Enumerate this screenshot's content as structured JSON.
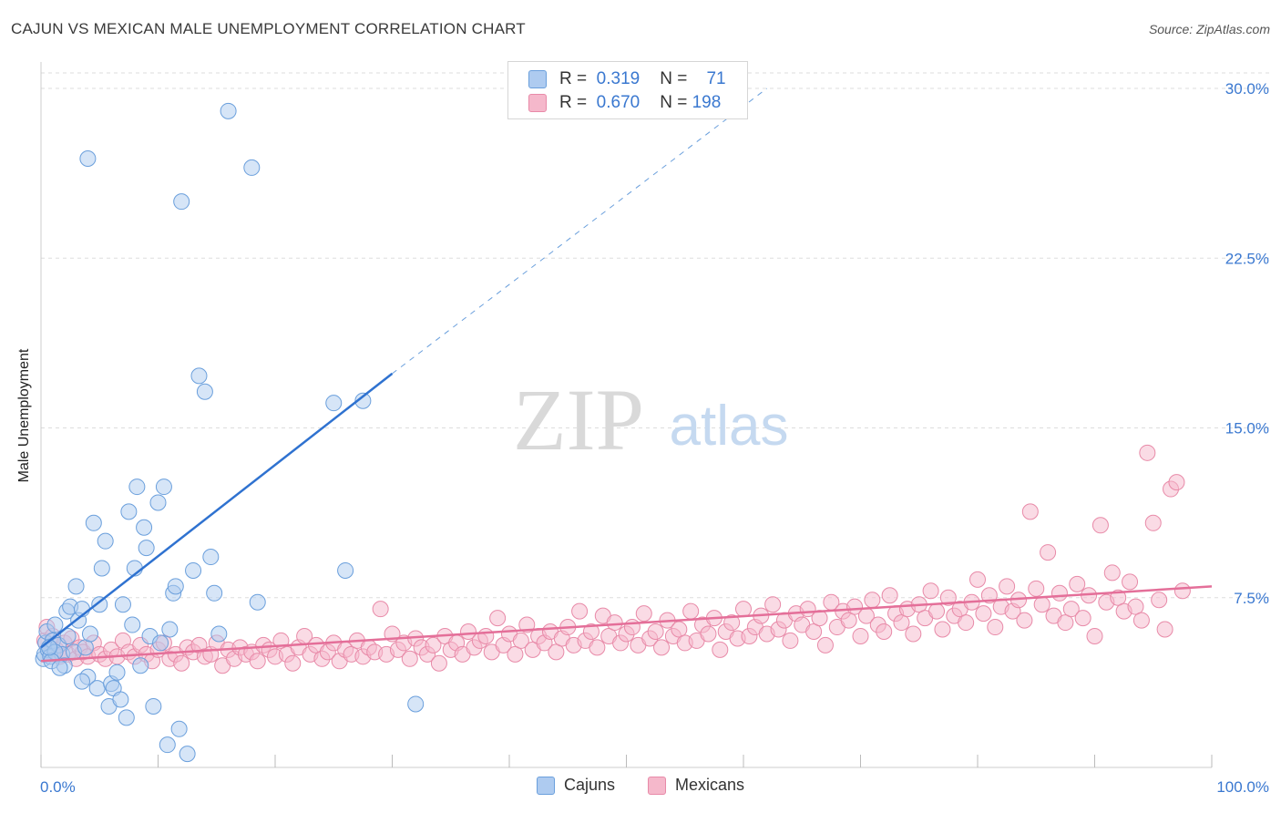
{
  "title": "CAJUN VS MEXICAN MALE UNEMPLOYMENT CORRELATION CHART",
  "source": "Source: ZipAtlas.com",
  "watermark": {
    "zip": "ZIP",
    "atlas": "atlas"
  },
  "colors": {
    "cajun_fill": "#aecbf0",
    "cajun_stroke": "#6a9fdc",
    "cajun_line": "#2f72d0",
    "mexican_fill": "#f5b8cb",
    "mexican_stroke": "#e88aa8",
    "mexican_line": "#e46f99",
    "axis_text": "#3a78d0",
    "grid": "#dddddd"
  },
  "legend": {
    "cajun": {
      "r_label": "R =",
      "r_value": "0.319",
      "n_label": "N =",
      "n_value": "71"
    },
    "mexican": {
      "r_label": "R =",
      "r_value": "0.670",
      "n_label": "N =",
      "n_value": "198"
    }
  },
  "bottom_legend": {
    "cajun": "Cajuns",
    "mexican": "Mexicans"
  },
  "chart_data": {
    "type": "scatter",
    "ylabel": "Male Unemployment",
    "xlim": [
      0,
      100
    ],
    "ylim": [
      0,
      30
    ],
    "x_tick_labels": [
      "0.0%",
      "100.0%"
    ],
    "y_ticks": [
      7.5,
      15.0,
      22.5,
      30.0
    ],
    "y_tick_labels": [
      "7.5%",
      "15.0%",
      "22.5%",
      "30.0%"
    ],
    "grid": true,
    "series": [
      {
        "name": "Cajuns",
        "points": [
          [
            0.2,
            4.8
          ],
          [
            0.3,
            5.0
          ],
          [
            0.4,
            5.5
          ],
          [
            0.5,
            6.0
          ],
          [
            0.6,
            5.2
          ],
          [
            0.8,
            4.9
          ],
          [
            1.0,
            5.6
          ],
          [
            1.2,
            6.3
          ],
          [
            1.5,
            5.4
          ],
          [
            1.8,
            5.0
          ],
          [
            2.0,
            4.5
          ],
          [
            2.2,
            6.9
          ],
          [
            2.5,
            7.1
          ],
          [
            2.8,
            5.1
          ],
          [
            3.0,
            8.0
          ],
          [
            3.2,
            6.5
          ],
          [
            3.5,
            7.0
          ],
          [
            3.8,
            5.3
          ],
          [
            4.0,
            4.0
          ],
          [
            4.2,
            5.9
          ],
          [
            4.5,
            10.8
          ],
          [
            4.8,
            3.5
          ],
          [
            5.0,
            7.2
          ],
          [
            5.2,
            8.8
          ],
          [
            5.5,
            10.0
          ],
          [
            5.8,
            2.7
          ],
          [
            6.0,
            3.7
          ],
          [
            6.2,
            3.5
          ],
          [
            6.5,
            4.2
          ],
          [
            6.8,
            3.0
          ],
          [
            7.0,
            7.2
          ],
          [
            7.3,
            2.2
          ],
          [
            7.5,
            11.3
          ],
          [
            7.8,
            6.3
          ],
          [
            8.0,
            8.8
          ],
          [
            8.2,
            12.4
          ],
          [
            8.5,
            4.5
          ],
          [
            8.8,
            10.6
          ],
          [
            9.0,
            9.7
          ],
          [
            9.3,
            5.8
          ],
          [
            9.6,
            2.7
          ],
          [
            10.0,
            11.7
          ],
          [
            10.2,
            5.5
          ],
          [
            10.5,
            12.4
          ],
          [
            10.8,
            1.0
          ],
          [
            11.0,
            6.1
          ],
          [
            11.3,
            7.7
          ],
          [
            11.5,
            8.0
          ],
          [
            11.8,
            1.7
          ],
          [
            12.0,
            25.0
          ],
          [
            12.5,
            0.6
          ],
          [
            13.0,
            8.7
          ],
          [
            13.5,
            17.3
          ],
          [
            14.0,
            16.6
          ],
          [
            14.5,
            9.3
          ],
          [
            14.8,
            7.7
          ],
          [
            15.2,
            5.9
          ],
          [
            16.0,
            29.0
          ],
          [
            18.0,
            26.5
          ],
          [
            18.5,
            7.3
          ],
          [
            25.0,
            16.1
          ],
          [
            26.0,
            8.7
          ],
          [
            27.5,
            16.2
          ],
          [
            32.0,
            2.8
          ],
          [
            1.2,
            5.1
          ],
          [
            0.9,
            4.7
          ],
          [
            3.5,
            3.8
          ],
          [
            1.6,
            4.4
          ],
          [
            2.3,
            5.8
          ],
          [
            0.7,
            5.3
          ],
          [
            4.0,
            26.9
          ]
        ]
      },
      {
        "name": "Mexicans",
        "points": [
          [
            0.3,
            5.6
          ],
          [
            0.5,
            6.2
          ],
          [
            0.8,
            5.0
          ],
          [
            1.0,
            5.8
          ],
          [
            1.3,
            5.2
          ],
          [
            1.6,
            4.9
          ],
          [
            2.0,
            5.5
          ],
          [
            2.3,
            5.0
          ],
          [
            2.6,
            5.7
          ],
          [
            3.0,
            4.8
          ],
          [
            3.3,
            5.3
          ],
          [
            3.6,
            5.1
          ],
          [
            4.0,
            4.9
          ],
          [
            4.5,
            5.5
          ],
          [
            5.0,
            5.0
          ],
          [
            5.5,
            4.8
          ],
          [
            6.0,
            5.2
          ],
          [
            6.5,
            4.9
          ],
          [
            7.0,
            5.6
          ],
          [
            7.5,
            5.1
          ],
          [
            8.0,
            4.9
          ],
          [
            8.5,
            5.4
          ],
          [
            9.0,
            5.0
          ],
          [
            9.5,
            4.7
          ],
          [
            10.0,
            5.2
          ],
          [
            10.5,
            5.5
          ],
          [
            11.0,
            4.8
          ],
          [
            11.5,
            5.0
          ],
          [
            12.0,
            4.6
          ],
          [
            12.5,
            5.3
          ],
          [
            13.0,
            5.1
          ],
          [
            13.5,
            5.4
          ],
          [
            14.0,
            4.9
          ],
          [
            14.5,
            5.0
          ],
          [
            15.0,
            5.5
          ],
          [
            15.5,
            4.5
          ],
          [
            16.0,
            5.2
          ],
          [
            16.5,
            4.8
          ],
          [
            17.0,
            5.3
          ],
          [
            17.5,
            5.0
          ],
          [
            18.0,
            5.1
          ],
          [
            18.5,
            4.7
          ],
          [
            19.0,
            5.4
          ],
          [
            19.5,
            5.2
          ],
          [
            20.0,
            4.9
          ],
          [
            20.5,
            5.6
          ],
          [
            21.0,
            5.0
          ],
          [
            21.5,
            4.6
          ],
          [
            22.0,
            5.3
          ],
          [
            22.5,
            5.8
          ],
          [
            23.0,
            5.0
          ],
          [
            23.5,
            5.4
          ],
          [
            24.0,
            4.8
          ],
          [
            24.5,
            5.1
          ],
          [
            25.0,
            5.5
          ],
          [
            25.5,
            4.7
          ],
          [
            26.0,
            5.2
          ],
          [
            26.5,
            5.0
          ],
          [
            27.0,
            5.6
          ],
          [
            27.5,
            4.9
          ],
          [
            28.0,
            5.3
          ],
          [
            28.5,
            5.1
          ],
          [
            29.0,
            7.0
          ],
          [
            29.5,
            5.0
          ],
          [
            30.0,
            5.9
          ],
          [
            30.5,
            5.2
          ],
          [
            31.0,
            5.5
          ],
          [
            31.5,
            4.8
          ],
          [
            32.0,
            5.7
          ],
          [
            32.5,
            5.3
          ],
          [
            33.0,
            5.0
          ],
          [
            33.5,
            5.4
          ],
          [
            34.0,
            4.6
          ],
          [
            34.5,
            5.8
          ],
          [
            35.0,
            5.2
          ],
          [
            35.5,
            5.5
          ],
          [
            36.0,
            5.0
          ],
          [
            36.5,
            6.0
          ],
          [
            37.0,
            5.3
          ],
          [
            37.5,
            5.6
          ],
          [
            38.0,
            5.8
          ],
          [
            38.5,
            5.1
          ],
          [
            39.0,
            6.6
          ],
          [
            39.5,
            5.4
          ],
          [
            40.0,
            5.9
          ],
          [
            40.5,
            5.0
          ],
          [
            41.0,
            5.6
          ],
          [
            41.5,
            6.3
          ],
          [
            42.0,
            5.2
          ],
          [
            42.5,
            5.8
          ],
          [
            43.0,
            5.5
          ],
          [
            43.5,
            6.0
          ],
          [
            44.0,
            5.1
          ],
          [
            44.5,
            5.7
          ],
          [
            45.0,
            6.2
          ],
          [
            45.5,
            5.4
          ],
          [
            46.0,
            6.9
          ],
          [
            46.5,
            5.6
          ],
          [
            47.0,
            6.0
          ],
          [
            47.5,
            5.3
          ],
          [
            48.0,
            6.7
          ],
          [
            48.5,
            5.8
          ],
          [
            49.0,
            6.4
          ],
          [
            49.5,
            5.5
          ],
          [
            50.0,
            5.9
          ],
          [
            50.5,
            6.2
          ],
          [
            51.0,
            5.4
          ],
          [
            51.5,
            6.8
          ],
          [
            52.0,
            5.7
          ],
          [
            52.5,
            6.0
          ],
          [
            53.0,
            5.3
          ],
          [
            53.5,
            6.5
          ],
          [
            54.0,
            5.8
          ],
          [
            54.5,
            6.1
          ],
          [
            55.0,
            5.5
          ],
          [
            55.5,
            6.9
          ],
          [
            56.0,
            5.6
          ],
          [
            56.5,
            6.3
          ],
          [
            57.0,
            5.9
          ],
          [
            57.5,
            6.6
          ],
          [
            58.0,
            5.2
          ],
          [
            58.5,
            6.0
          ],
          [
            59.0,
            6.4
          ],
          [
            59.5,
            5.7
          ],
          [
            60.0,
            7.0
          ],
          [
            60.5,
            5.8
          ],
          [
            61.0,
            6.2
          ],
          [
            61.5,
            6.7
          ],
          [
            62.0,
            5.9
          ],
          [
            62.5,
            7.2
          ],
          [
            63.0,
            6.1
          ],
          [
            63.5,
            6.5
          ],
          [
            64.0,
            5.6
          ],
          [
            64.5,
            6.8
          ],
          [
            65.0,
            6.3
          ],
          [
            65.5,
            7.0
          ],
          [
            66.0,
            6.0
          ],
          [
            66.5,
            6.6
          ],
          [
            67.0,
            5.4
          ],
          [
            67.5,
            7.3
          ],
          [
            68.0,
            6.2
          ],
          [
            68.5,
            6.9
          ],
          [
            69.0,
            6.5
          ],
          [
            69.5,
            7.1
          ],
          [
            70.0,
            5.8
          ],
          [
            70.5,
            6.7
          ],
          [
            71.0,
            7.4
          ],
          [
            71.5,
            6.3
          ],
          [
            72.0,
            6.0
          ],
          [
            72.5,
            7.6
          ],
          [
            73.0,
            6.8
          ],
          [
            73.5,
            6.4
          ],
          [
            74.0,
            7.0
          ],
          [
            74.5,
            5.9
          ],
          [
            75.0,
            7.2
          ],
          [
            75.5,
            6.6
          ],
          [
            76.0,
            7.8
          ],
          [
            76.5,
            6.9
          ],
          [
            77.0,
            6.1
          ],
          [
            77.5,
            7.5
          ],
          [
            78.0,
            6.7
          ],
          [
            78.5,
            7.0
          ],
          [
            79.0,
            6.4
          ],
          [
            79.5,
            7.3
          ],
          [
            80.0,
            8.3
          ],
          [
            80.5,
            6.8
          ],
          [
            81.0,
            7.6
          ],
          [
            81.5,
            6.2
          ],
          [
            82.0,
            7.1
          ],
          [
            82.5,
            8.0
          ],
          [
            83.0,
            6.9
          ],
          [
            83.5,
            7.4
          ],
          [
            84.0,
            6.5
          ],
          [
            84.5,
            11.3
          ],
          [
            85.0,
            7.9
          ],
          [
            85.5,
            7.2
          ],
          [
            86.0,
            9.5
          ],
          [
            86.5,
            6.7
          ],
          [
            87.0,
            7.7
          ],
          [
            87.5,
            6.4
          ],
          [
            88.0,
            7.0
          ],
          [
            88.5,
            8.1
          ],
          [
            89.0,
            6.6
          ],
          [
            89.5,
            7.6
          ],
          [
            90.0,
            5.8
          ],
          [
            90.5,
            10.7
          ],
          [
            91.0,
            7.3
          ],
          [
            91.5,
            8.6
          ],
          [
            92.0,
            7.5
          ],
          [
            92.5,
            6.9
          ],
          [
            93.0,
            8.2
          ],
          [
            93.5,
            7.1
          ],
          [
            94.0,
            6.5
          ],
          [
            94.5,
            13.9
          ],
          [
            95.0,
            10.8
          ],
          [
            95.5,
            7.4
          ],
          [
            96.0,
            6.1
          ],
          [
            96.5,
            12.3
          ],
          [
            97.0,
            12.6
          ],
          [
            97.5,
            7.8
          ]
        ]
      }
    ],
    "trend_lines": [
      {
        "name": "Cajuns",
        "from": [
          0,
          5.3
        ],
        "to": [
          30,
          17.4
        ],
        "extension_to": [
          62,
          30.0
        ],
        "extension_dashed": true
      },
      {
        "name": "Mexicans",
        "from": [
          0,
          4.7
        ],
        "to": [
          100,
          8.0
        ]
      }
    ]
  }
}
